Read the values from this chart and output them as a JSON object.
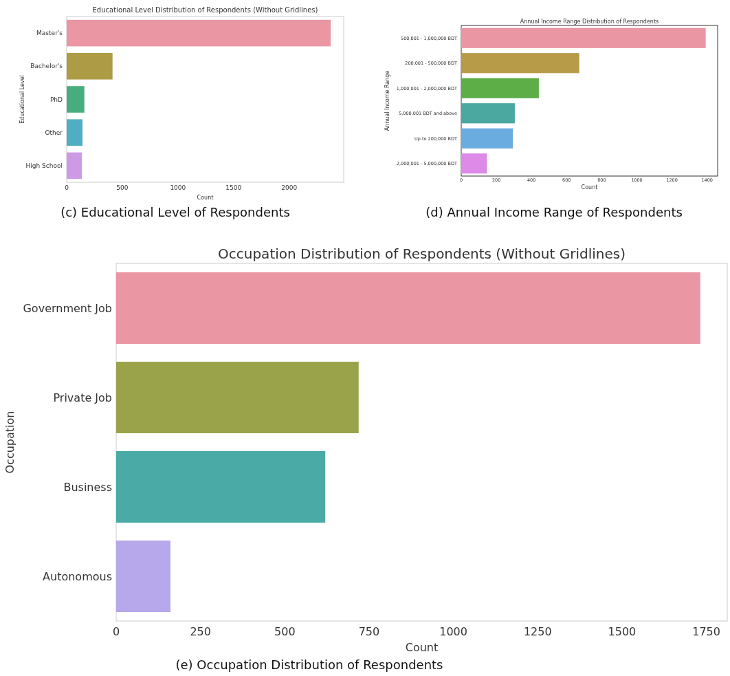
{
  "chart_data": [
    {
      "type": "bar",
      "orientation": "horizontal",
      "title": "Educational Level Distribution of Respondents (Without Gridlines)",
      "xlabel": "Count",
      "ylabel": "Educational Level",
      "categories": [
        "Master's",
        "Bachelor's",
        "PhD",
        "Other",
        "High School"
      ],
      "values": [
        2373,
        412,
        159,
        142,
        136
      ],
      "colors": [
        "#ea96a3",
        "#ad9c45",
        "#48ad7e",
        "#50aec4",
        "#cd9ae6"
      ],
      "xlim": [
        0,
        2490
      ],
      "xticks": [
        0,
        500,
        1000,
        1500,
        2000
      ],
      "annotations": [
        "(c) Educational Level of Respondents"
      ]
    },
    {
      "type": "bar",
      "orientation": "horizontal",
      "title": "Annual Income Range Distribution of Respondents",
      "xlabel": "Count",
      "ylabel": "Annual Income Range",
      "categories": [
        "500,001 - 1,000,000 BDT",
        "200,001 - 500,000 BDT",
        "1,000,001 - 2,000,000 BDT",
        "5,000,001 BDT and above",
        "Up to 200,000 BDT",
        "2,000,001 - 5,000,000 BDT"
      ],
      "values": [
        1392,
        672,
        442,
        305,
        294,
        146
      ],
      "colors": [
        "#ea96a3",
        "#b89b48",
        "#5eae48",
        "#4aa8a0",
        "#6aabe0",
        "#dd8ae8"
      ],
      "xlim": [
        0,
        1460
      ],
      "xticks": [
        0,
        200,
        400,
        600,
        800,
        1000,
        1200,
        1400
      ],
      "annotations": [
        "(d) Annual Income Range of Respondents"
      ]
    },
    {
      "type": "bar",
      "orientation": "horizontal",
      "title": "Occupation Distribution of Respondents (Without Gridlines)",
      "xlabel": "Count",
      "ylabel": "Occupation",
      "categories": [
        "Government Job",
        "Private Job",
        "Business",
        "Autonomous"
      ],
      "values": [
        1732,
        719,
        620,
        161
      ],
      "colors": [
        "#ea96a3",
        "#9aa349",
        "#4aaaa5",
        "#b6a8ea"
      ],
      "xlim": [
        0,
        1812
      ],
      "xticks": [
        0,
        250,
        500,
        750,
        1000,
        1250,
        1500,
        1750
      ],
      "annotations": [
        "(e) Occupation Distribution of Respondents"
      ]
    }
  ]
}
